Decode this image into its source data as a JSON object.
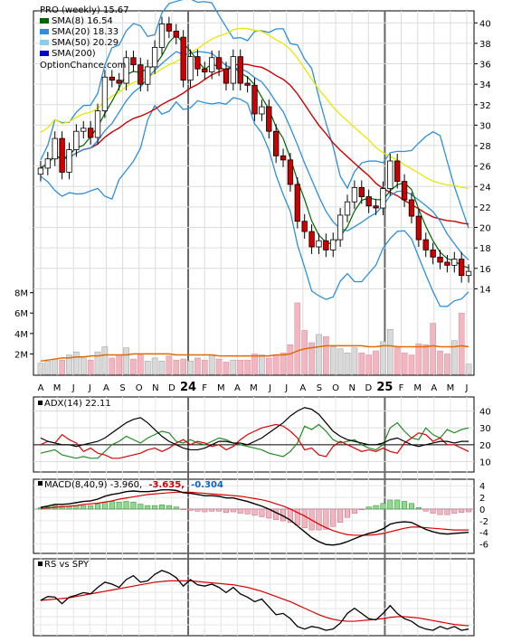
{
  "chart_data": [
    {
      "type": "candlestick",
      "title": "PRO (weekly) 15.67",
      "watermark": "OptionChance.com",
      "x_labels": [
        "A",
        "M",
        "J",
        "J",
        "A",
        "S",
        "O",
        "N",
        "D",
        "24",
        "F",
        "M",
        "A",
        "M",
        "J",
        "J",
        "A",
        "S",
        "O",
        "N",
        "D",
        "25",
        "F",
        "M",
        "A",
        "M",
        "J"
      ],
      "y_ticks": [
        14,
        16,
        18,
        20,
        22,
        24,
        26,
        28,
        30,
        32,
        34,
        36,
        38,
        40
      ],
      "ylim": [
        12,
        41
      ],
      "legend": [
        {
          "label": "SMA(8) 16.54",
          "color": "#006400"
        },
        {
          "label": "SMA(20) 18.33",
          "color": "#2f8fdc"
        },
        {
          "label": "SMA(50) 20.29",
          "color": "#87ceeb"
        },
        {
          "label": "SMA(200)",
          "color": "#0000cd"
        }
      ],
      "close": [
        25.8,
        26.7,
        28.7,
        25.4,
        27.6,
        29.4,
        29.7,
        28.8,
        31.4,
        34.7,
        34.4,
        34.1,
        36.6,
        35.9,
        34.0,
        35.7,
        37.6,
        39.9,
        39.2,
        38.6,
        34.4,
        36.7,
        35.5,
        35.2,
        36.6,
        35.5,
        34.1,
        36.7,
        34.1,
        33.9,
        31.1,
        31.8,
        29.4,
        27.0,
        26.6,
        24.2,
        20.6,
        19.6,
        18.1,
        18.7,
        17.8,
        18.8,
        21.2,
        22.5,
        23.9,
        23.0,
        22.1,
        21.9,
        23.8,
        26.5,
        24.5,
        22.7,
        21.1,
        18.8,
        17.8,
        17.1,
        16.6,
        16.3,
        16.9,
        15.3,
        15.7
      ],
      "volume_ticks": [
        "2M",
        "4M",
        "6M",
        "8M"
      ],
      "volume_ylim": [
        0,
        8.5
      ],
      "volume_millions": [
        1.1,
        1.3,
        1.5,
        1.4,
        1.9,
        2.2,
        1.7,
        1.4,
        2.2,
        2.7,
        1.6,
        1.9,
        2.6,
        1.5,
        1.9,
        1.3,
        1.6,
        1.3,
        1.8,
        1.4,
        1.5,
        1.3,
        1.6,
        1.4,
        1.9,
        1.5,
        1.2,
        1.4,
        1.4,
        1.4,
        2.0,
        1.9,
        1.6,
        1.9,
        2.1,
        2.9,
        7.0,
        4.3,
        3.1,
        3.9,
        3.7,
        2.7,
        2.5,
        2.1,
        2.6,
        2.1,
        1.9,
        2.3,
        3.2,
        4.4,
        2.6,
        2.1,
        1.9,
        3.0,
        2.9,
        5.0,
        2.3,
        2.0,
        3.3,
        6.0,
        1.0
      ],
      "volume_sma": [
        1.3,
        1.4,
        1.5,
        1.6,
        1.6,
        1.7,
        1.7,
        1.8,
        1.8,
        1.9,
        1.9,
        1.9,
        1.9,
        2.0,
        2.0,
        2.0,
        2.0,
        2.0,
        2.0,
        1.9,
        1.9,
        1.9,
        1.9,
        1.9,
        1.9,
        1.8,
        1.8,
        1.8,
        1.8,
        1.8,
        1.8,
        1.8,
        1.8,
        1.9,
        1.9,
        2.0,
        2.3,
        2.5,
        2.6,
        2.7,
        2.8,
        2.8,
        2.8,
        2.8,
        2.8,
        2.8,
        2.7,
        2.7,
        2.8,
        2.8,
        2.7,
        2.7,
        2.7,
        2.7,
        2.7,
        2.8,
        2.7,
        2.7,
        2.7,
        2.8,
        2.7
      ]
    },
    {
      "type": "line",
      "title": "ADX(14) 22.11",
      "y_ticks": [
        10,
        20,
        30,
        40
      ],
      "ylim": [
        6,
        44
      ],
      "adx": [
        24,
        22,
        21,
        20,
        20,
        19,
        20,
        21,
        22,
        24,
        27,
        30,
        33,
        35,
        36,
        33,
        29,
        25,
        22,
        20,
        18,
        17,
        17,
        18,
        20,
        22,
        22,
        21,
        21,
        20,
        22,
        24,
        27,
        30,
        33,
        37,
        40,
        42,
        41,
        38,
        33,
        28,
        25,
        23,
        22,
        21,
        20,
        20,
        21,
        23,
        24,
        22,
        20,
        19,
        20,
        21,
        22,
        22,
        21,
        22,
        22
      ],
      "plus_di": [
        15,
        16,
        17,
        14,
        13,
        12,
        13,
        12,
        12,
        16,
        20,
        22,
        25,
        23,
        21,
        24,
        26,
        28,
        27,
        22,
        21,
        23,
        21,
        20,
        22,
        24,
        23,
        21,
        20,
        19,
        18,
        17,
        15,
        14,
        13,
        16,
        21,
        31,
        29,
        32,
        28,
        23,
        21,
        22,
        23,
        20,
        18,
        17,
        20,
        30,
        33,
        28,
        24,
        23,
        30,
        26,
        24,
        29,
        27,
        29,
        30
      ],
      "minus_di": [
        20,
        22,
        21,
        26,
        23,
        21,
        16,
        18,
        15,
        14,
        12,
        12,
        13,
        14,
        15,
        17,
        18,
        16,
        18,
        21,
        23,
        20,
        22,
        21,
        19,
        20,
        17,
        19,
        23,
        26,
        28,
        30,
        31,
        32,
        31,
        28,
        24,
        17,
        18,
        14,
        13,
        19,
        22,
        20,
        18,
        16,
        17,
        16,
        18,
        16,
        15,
        21,
        24,
        27,
        26,
        22,
        24,
        20,
        20,
        18,
        16
      ]
    },
    {
      "type": "bar-line",
      "title_prefix": "MACD(8,40,9) -3.960,",
      "signal_label": "-3.635,",
      "hist_label": "-0.304",
      "y_ticks": [
        -6,
        -4,
        -2,
        0,
        2,
        4
      ],
      "ylim": [
        -7,
        4.5
      ],
      "macd": [
        0.3,
        0.5,
        0.8,
        0.8,
        0.9,
        1.1,
        1.3,
        1.4,
        1.7,
        2.2,
        2.5,
        2.7,
        3.0,
        3.1,
        3.0,
        3.0,
        3.1,
        3.3,
        3.3,
        3.2,
        2.8,
        2.7,
        2.5,
        2.3,
        2.3,
        2.2,
        1.9,
        1.9,
        1.6,
        1.3,
        0.9,
        0.5,
        0.0,
        -0.6,
        -1.2,
        -1.9,
        -2.9,
        -3.9,
        -4.9,
        -5.6,
        -6.1,
        -6.2,
        -6.0,
        -5.6,
        -5.1,
        -4.6,
        -4.2,
        -3.9,
        -3.4,
        -2.6,
        -2.3,
        -2.2,
        -2.3,
        -2.9,
        -3.5,
        -3.9,
        -4.2,
        -4.3,
        -4.2,
        -4.1,
        -4.0
      ],
      "signal": [
        0.1,
        0.2,
        0.3,
        0.4,
        0.5,
        0.6,
        0.8,
        0.9,
        1.0,
        1.2,
        1.4,
        1.7,
        1.9,
        2.1,
        2.3,
        2.5,
        2.6,
        2.7,
        2.8,
        2.9,
        2.9,
        2.9,
        2.8,
        2.7,
        2.6,
        2.5,
        2.4,
        2.3,
        2.2,
        2.0,
        1.8,
        1.6,
        1.3,
        0.9,
        0.5,
        0.0,
        -0.6,
        -1.2,
        -1.9,
        -2.6,
        -3.2,
        -3.7,
        -4.1,
        -4.4,
        -4.5,
        -4.5,
        -4.5,
        -4.4,
        -4.2,
        -3.9,
        -3.6,
        -3.3,
        -3.1,
        -3.1,
        -3.2,
        -3.3,
        -3.4,
        -3.5,
        -3.6,
        -3.6,
        -3.6
      ]
    },
    {
      "type": "line",
      "title": "RS vs SPY",
      "ylim": [
        0,
        1
      ],
      "rs": [
        0.5,
        0.56,
        0.55,
        0.45,
        0.55,
        0.58,
        0.62,
        0.6,
        0.7,
        0.78,
        0.75,
        0.7,
        0.82,
        0.88,
        0.78,
        0.8,
        0.9,
        0.96,
        0.92,
        0.85,
        0.72,
        0.82,
        0.74,
        0.72,
        0.75,
        0.7,
        0.62,
        0.7,
        0.6,
        0.55,
        0.48,
        0.52,
        0.4,
        0.28,
        0.3,
        0.22,
        0.1,
        0.06,
        0.1,
        0.08,
        0.04,
        0.06,
        0.15,
        0.3,
        0.38,
        0.3,
        0.22,
        0.2,
        0.3,
        0.42,
        0.3,
        0.22,
        0.18,
        0.1,
        0.06,
        0.04,
        0.1,
        0.06,
        0.1,
        0.04,
        0.06
      ],
      "rs_sma": [
        0.5,
        0.51,
        0.52,
        0.53,
        0.54,
        0.56,
        0.58,
        0.6,
        0.62,
        0.64,
        0.66,
        0.68,
        0.7,
        0.72,
        0.74,
        0.76,
        0.78,
        0.79,
        0.8,
        0.8,
        0.8,
        0.8,
        0.79,
        0.78,
        0.77,
        0.76,
        0.75,
        0.74,
        0.72,
        0.7,
        0.67,
        0.64,
        0.6,
        0.56,
        0.52,
        0.48,
        0.43,
        0.38,
        0.33,
        0.28,
        0.24,
        0.21,
        0.19,
        0.18,
        0.18,
        0.19,
        0.2,
        0.21,
        0.22,
        0.24,
        0.25,
        0.25,
        0.24,
        0.23,
        0.21,
        0.19,
        0.17,
        0.15,
        0.13,
        0.12,
        0.11
      ]
    }
  ]
}
